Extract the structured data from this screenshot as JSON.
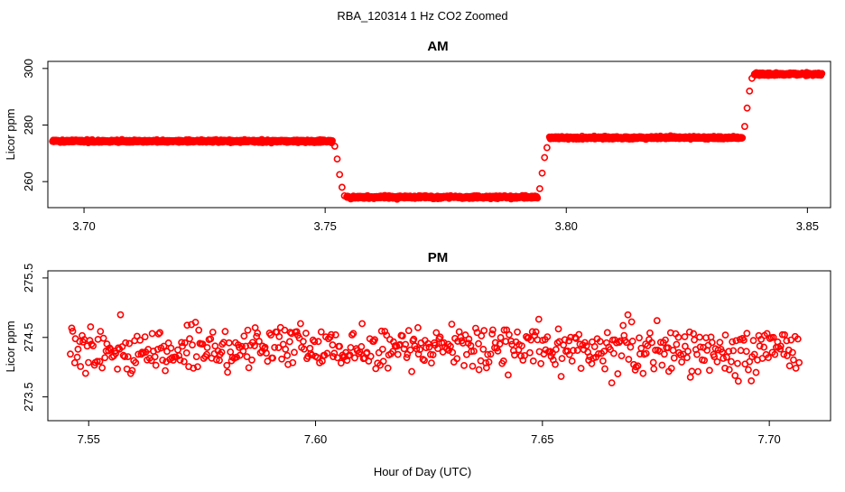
{
  "chart_data": {
    "suptitle": "RBA_120314  1 Hz CO2 Zoomed",
    "xlabel": "Hour of Day (UTC)",
    "marker_color": "#ff0000",
    "panels": [
      {
        "id": "am",
        "type": "scatter",
        "title": "AM",
        "ylabel": "Licor ppm",
        "xlim": [
          3.6925,
          3.8548
        ],
        "ylim": [
          250.8,
          302.5
        ],
        "xticks": [
          3.7,
          3.75,
          3.8,
          3.85
        ],
        "xtick_labels": [
          "3.70",
          "3.75",
          "3.80",
          "3.85"
        ],
        "yticks": [
          260,
          280,
          300
        ],
        "ytick_labels": [
          "260",
          "280",
          "300"
        ],
        "series": [
          {
            "name": "plateau 1",
            "x_start": 3.6935,
            "x_end": 3.7515,
            "y": 274.3,
            "noise": 0.6
          },
          {
            "name": "step down",
            "x": [
              3.752,
              3.7525,
              3.753,
              3.7535,
              3.754
            ],
            "y": [
              272.5,
              268.0,
              262.5,
              258.0,
              255.0
            ]
          },
          {
            "name": "plateau 2",
            "x_start": 3.7545,
            "x_end": 3.794,
            "y": 254.5,
            "noise": 0.6
          },
          {
            "name": "step up",
            "x": [
              3.7945,
              3.795,
              3.7955,
              3.796
            ],
            "y": [
              257.5,
              263.0,
              268.5,
              272.0
            ]
          },
          {
            "name": "plateau 3",
            "x_start": 3.7965,
            "x_end": 3.8365,
            "y": 275.5,
            "noise": 0.6
          },
          {
            "name": "step up 2",
            "x": [
              3.837,
              3.8375,
              3.838,
              3.8385
            ],
            "y": [
              279.5,
              286.0,
              292.0,
              296.5
            ]
          },
          {
            "name": "plateau 4",
            "x_start": 3.839,
            "x_end": 3.853,
            "y": 298.0,
            "noise": 0.6
          }
        ]
      },
      {
        "id": "pm",
        "type": "scatter",
        "title": "PM",
        "ylabel": "Licor ppm",
        "xlim": [
          7.541,
          7.7135
        ],
        "ylim": [
          273.1,
          275.62
        ],
        "xticks": [
          7.55,
          7.6,
          7.65,
          7.7
        ],
        "xtick_labels": [
          "7.55",
          "7.60",
          "7.65",
          "7.70"
        ],
        "yticks": [
          273.5,
          274.5,
          275.5
        ],
        "ytick_labels": [
          "273.5",
          "274.5",
          "275.5"
        ],
        "series": [
          {
            "name": "1 Hz samples",
            "x_start": 7.546,
            "x_end": 7.7065,
            "count": 580,
            "y_mean": 274.3,
            "y_range": [
              273.3,
              275.5
            ],
            "noise": 0.32
          }
        ]
      }
    ]
  }
}
